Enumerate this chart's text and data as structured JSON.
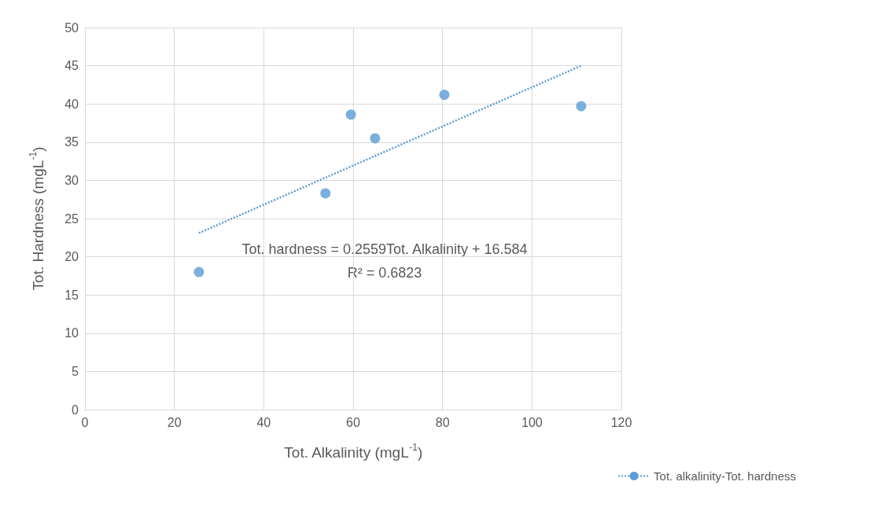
{
  "chart_data": {
    "type": "scatter",
    "xlabel": "Tot. Alkalinity (mgL$^{-1}$)",
    "ylabel": "Tot. Hardness (mgL$^{-1}$)",
    "xlim": [
      0,
      120
    ],
    "xticks": [
      0,
      20,
      40,
      60,
      80,
      100,
      120
    ],
    "ylim": [
      0,
      50
    ],
    "yticks": [
      0,
      5,
      10,
      15,
      20,
      25,
      30,
      35,
      40,
      45,
      50
    ],
    "grid": true,
    "legend": "bottom right",
    "marker": "circle",
    "annotations": [
      "Tot. hardness = 0.2559Tot. Alkalinity + 16.584",
      "R² = 0.6823"
    ],
    "series": [
      {
        "color": "#5b9bd5",
        "x": [
          25.5,
          53.8,
          59.5,
          64.9,
          80.4,
          111.0
        ],
        "values": [
          18.0,
          28.3,
          38.6,
          35.5,
          41.2,
          39.7
        ]
      },
      {
        "name": "Tot. alkalinity-Tot. hardness",
        "type": "line",
        "color": "#5b9bd5",
        "x": [
          25.5,
          111.0
        ],
        "values": [
          23.1,
          45.0
        ],
        "line_style": "dotted",
        "marker": "none"
      }
    ]
  }
}
